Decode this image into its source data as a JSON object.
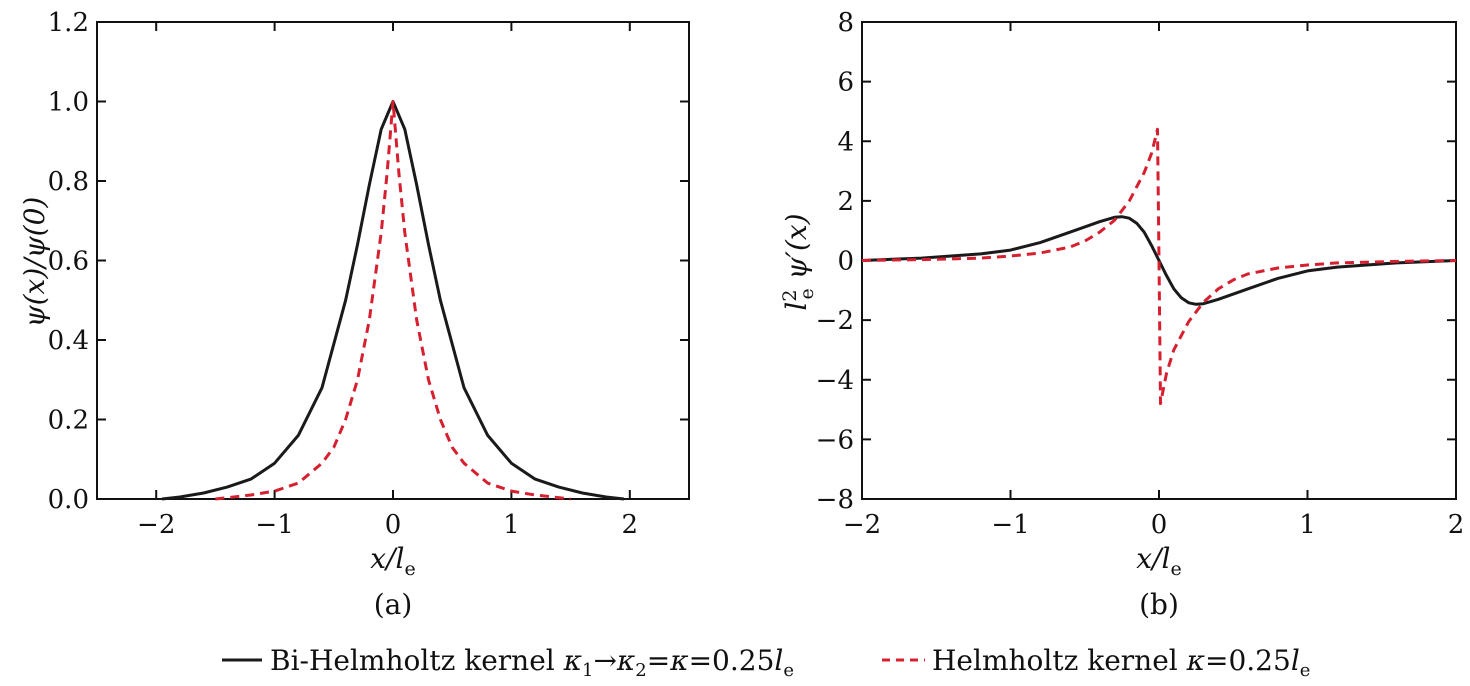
{
  "chart_data": [
    {
      "type": "line",
      "panel_label": "(a)",
      "xlabel": "x/l_e",
      "ylabel": "ψ(x)/ψ(0)",
      "xlim": [
        -2.5,
        2.5
      ],
      "ylim": [
        0.0,
        1.2
      ],
      "xticks": [
        "−2",
        "−1",
        "0",
        "1",
        "2"
      ],
      "xtick_values": [
        -2,
        -1,
        0,
        1,
        2
      ],
      "yticks": [
        "0.0",
        "0.2",
        "0.4",
        "0.6",
        "0.8",
        "1.0",
        "1.2"
      ],
      "ytick_values": [
        0.0,
        0.2,
        0.4,
        0.6,
        0.8,
        1.0,
        1.2
      ],
      "grid": false,
      "series": [
        {
          "name": "Bi-Helmholtz kernel κ1→κ2=κ=0.25le",
          "color": "#1a1a1a",
          "style": "solid",
          "x": [
            -1.95,
            -1.8,
            -1.6,
            -1.4,
            -1.2,
            -1.0,
            -0.8,
            -0.6,
            -0.4,
            -0.3,
            -0.2,
            -0.1,
            0.0,
            0.1,
            0.2,
            0.3,
            0.4,
            0.6,
            0.8,
            1.0,
            1.2,
            1.4,
            1.6,
            1.8,
            1.95
          ],
          "y": [
            0.0,
            0.005,
            0.015,
            0.03,
            0.05,
            0.09,
            0.16,
            0.28,
            0.5,
            0.64,
            0.79,
            0.93,
            1.0,
            0.93,
            0.79,
            0.64,
            0.5,
            0.28,
            0.16,
            0.09,
            0.05,
            0.03,
            0.015,
            0.005,
            0.0
          ]
        },
        {
          "name": "Helmholtz kernel κ=0.25le",
          "color": "#d62030",
          "style": "dashed",
          "x": [
            -1.5,
            -1.2,
            -1.0,
            -0.8,
            -0.6,
            -0.5,
            -0.4,
            -0.3,
            -0.2,
            -0.1,
            -0.05,
            0.0,
            0.05,
            0.1,
            0.2,
            0.3,
            0.4,
            0.5,
            0.6,
            0.8,
            1.0,
            1.2,
            1.5
          ],
          "y": [
            0.0,
            0.01,
            0.02,
            0.04,
            0.09,
            0.13,
            0.2,
            0.3,
            0.45,
            0.67,
            0.82,
            1.0,
            0.82,
            0.67,
            0.45,
            0.3,
            0.2,
            0.13,
            0.09,
            0.04,
            0.02,
            0.01,
            0.0
          ]
        }
      ]
    },
    {
      "type": "line",
      "panel_label": "(b)",
      "xlabel": "x/l_e",
      "ylabel": "l_e^2 ψ′(x)",
      "xlim": [
        -2,
        2
      ],
      "ylim": [
        -8,
        8
      ],
      "xticks": [
        "−2",
        "−1",
        "0",
        "1",
        "2"
      ],
      "xtick_values": [
        -2,
        -1,
        0,
        1,
        2
      ],
      "yticks": [
        "−8",
        "−6",
        "−4",
        "−2",
        "0",
        "2",
        "4",
        "6",
        "8"
      ],
      "ytick_values": [
        -8,
        -6,
        -4,
        -2,
        0,
        2,
        4,
        6,
        8
      ],
      "grid": false,
      "series": [
        {
          "name": "Bi-Helmholtz kernel κ1→κ2=κ=0.25le",
          "color": "#1a1a1a",
          "style": "solid",
          "x": [
            -2.0,
            -1.6,
            -1.2,
            -1.0,
            -0.8,
            -0.6,
            -0.4,
            -0.3,
            -0.25,
            -0.2,
            -0.15,
            -0.1,
            -0.05,
            0.0,
            0.05,
            0.1,
            0.15,
            0.2,
            0.25,
            0.3,
            0.4,
            0.6,
            0.8,
            1.0,
            1.2,
            1.6,
            2.0
          ],
          "y": [
            0.0,
            0.08,
            0.22,
            0.35,
            0.6,
            0.95,
            1.3,
            1.45,
            1.47,
            1.42,
            1.25,
            0.95,
            0.5,
            0.0,
            -0.5,
            -0.95,
            -1.25,
            -1.42,
            -1.47,
            -1.45,
            -1.3,
            -0.95,
            -0.6,
            -0.35,
            -0.22,
            -0.08,
            0.0
          ]
        },
        {
          "name": "Helmholtz kernel κ=0.25le",
          "color": "#d62030",
          "style": "dashed",
          "x": [
            -2.0,
            -1.6,
            -1.2,
            -1.0,
            -0.8,
            -0.6,
            -0.5,
            -0.4,
            -0.3,
            -0.2,
            -0.1,
            -0.05,
            -0.01,
            0.0,
            0.01,
            0.05,
            0.1,
            0.2,
            0.3,
            0.4,
            0.5,
            0.6,
            0.8,
            1.0,
            1.2,
            1.6,
            2.0
          ],
          "y": [
            0.0,
            0.03,
            0.08,
            0.15,
            0.25,
            0.45,
            0.65,
            0.95,
            1.35,
            2.0,
            2.95,
            3.6,
            4.4,
            0.0,
            -4.8,
            -3.8,
            -3.0,
            -2.05,
            -1.4,
            -0.95,
            -0.65,
            -0.45,
            -0.25,
            -0.15,
            -0.08,
            -0.03,
            0.0
          ]
        }
      ]
    }
  ],
  "legend": {
    "placement": "bottom",
    "items": [
      {
        "label": "Bi-Helmholtz kernel κ1→κ2=κ=0.25le",
        "color": "#1a1a1a",
        "style": "solid"
      },
      {
        "label": "Helmholtz kernel κ=0.25le",
        "color": "#d62030",
        "style": "dashed"
      }
    ]
  }
}
